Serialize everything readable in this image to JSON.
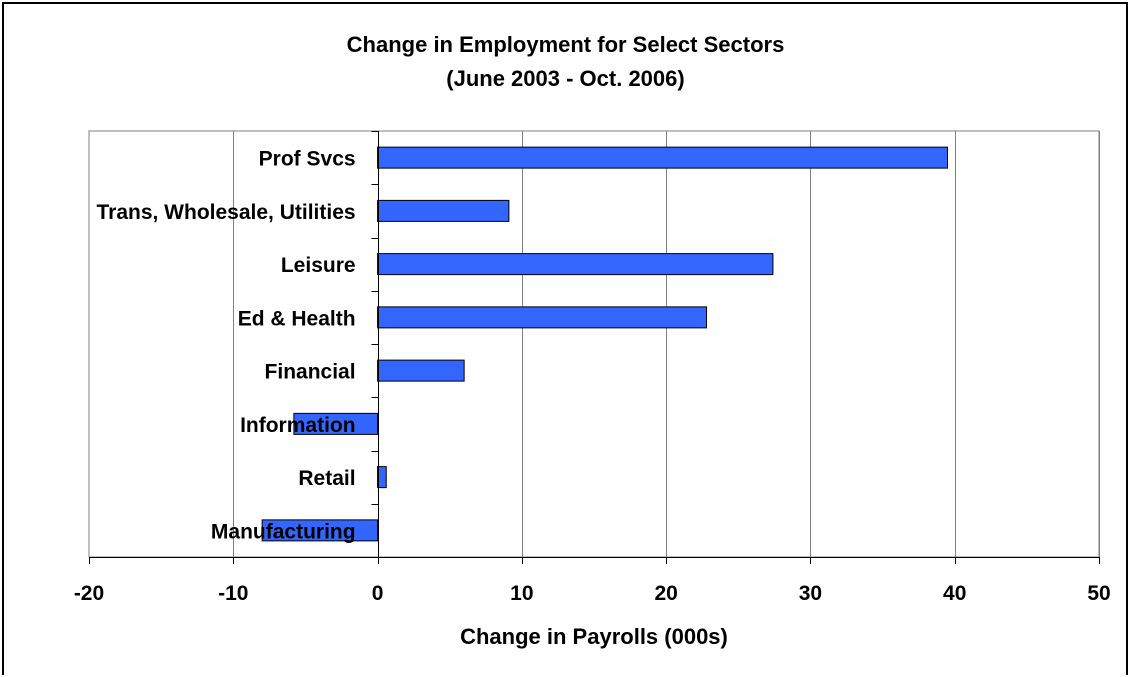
{
  "chart_data": {
    "type": "bar",
    "orientation": "horizontal",
    "title": "Change in Employment for Select Sectors",
    "subtitle": "(June 2003 - Oct. 2006)",
    "xlabel": "Change in Payrolls (000s)",
    "ylabel": "",
    "categories": [
      "Prof Svcs",
      "Trans, Wholesale, Utilities",
      "Leisure",
      "Ed & Health",
      "Financial",
      "Information",
      "Retail",
      "Manufacturing"
    ],
    "values": [
      39.5,
      9.1,
      27.4,
      22.8,
      6.0,
      -5.8,
      0.6,
      -8.0
    ],
    "xlim": [
      -20,
      50
    ],
    "xticks": [
      -20,
      -10,
      0,
      10,
      20,
      30,
      40,
      50
    ],
    "grid": "vertical gridlines",
    "legend": "none",
    "bar_color": "#3366FF"
  }
}
